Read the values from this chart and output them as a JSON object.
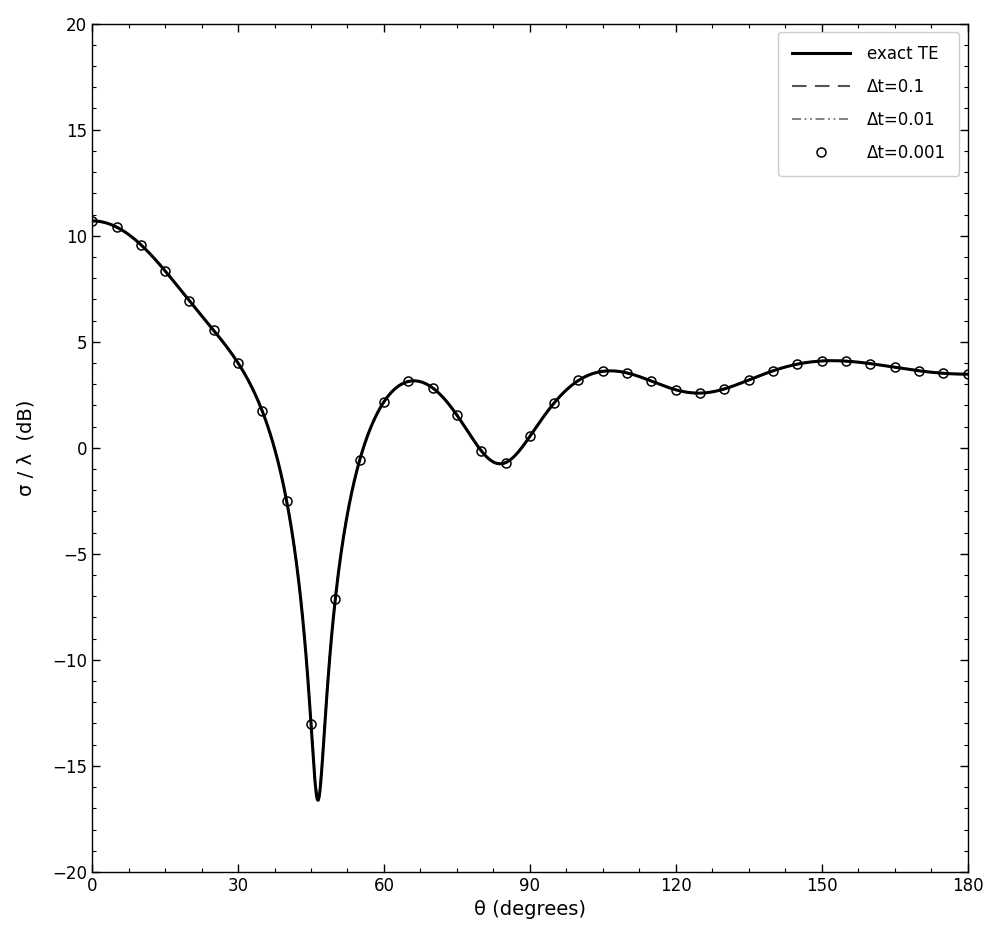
{
  "title": "",
  "xlabel": "θ (degrees)",
  "ylabel": "σ / λ  (dB)",
  "xlim": [
    0,
    180
  ],
  "ylim": [
    -20,
    20
  ],
  "xticks": [
    0,
    30,
    60,
    90,
    120,
    150,
    180
  ],
  "yticks": [
    -20,
    -15,
    -10,
    -5,
    0,
    5,
    10,
    15,
    20
  ],
  "legend_labels": [
    "exact TE",
    "Δt=0.1",
    "Δt=0.01",
    "Δt=0.001"
  ],
  "legend_loc": "upper right",
  "background_color": "#ffffff",
  "line_color": "#000000",
  "ka": 5.0,
  "num_points_exact": 1000,
  "num_points_scatter": 37
}
